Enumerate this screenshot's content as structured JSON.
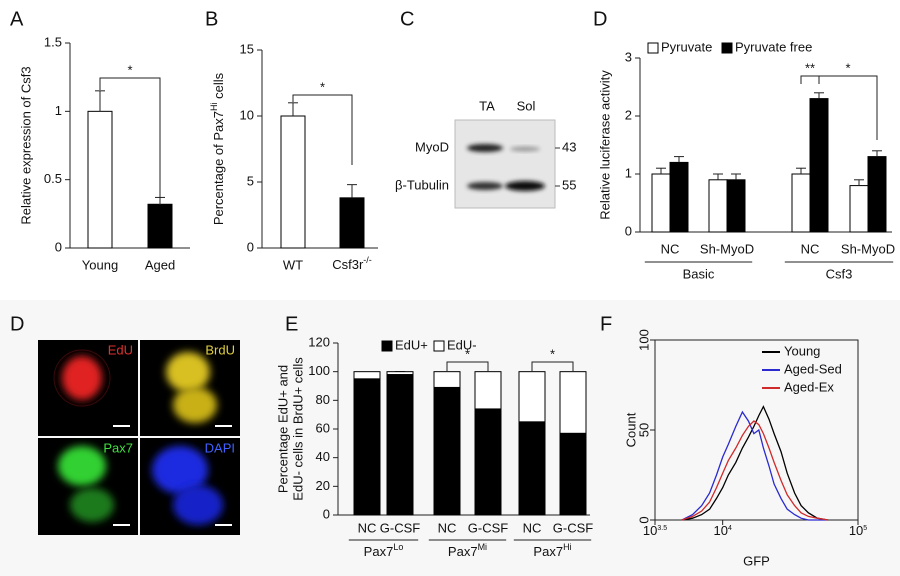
{
  "chart_data": [
    {
      "type": "bar",
      "panel": "A",
      "ylabel": "Relative expression of Csf3",
      "categories": [
        "Young",
        "Aged"
      ],
      "values": [
        1,
        0.32
      ],
      "errors": [
        0.15,
        0.05
      ],
      "colors": [
        "#ffffff",
        "#000000"
      ],
      "ylim": [
        0,
        1.5
      ],
      "yticks": [
        0,
        0.5,
        1,
        1.5
      ],
      "annotations": [
        "*"
      ]
    },
    {
      "type": "bar",
      "panel": "B",
      "ylabel": [
        "Percentage of Pax7",
        "Hi",
        " cells"
      ],
      "categories": [
        "WT",
        [
          "Csf3r",
          "-/-"
        ]
      ],
      "values": [
        10,
        3.8
      ],
      "errors": [
        1,
        1
      ],
      "colors": [
        "#ffffff",
        "#000000"
      ],
      "ylim": [
        0,
        15
      ],
      "yticks": [
        0,
        5,
        10,
        15
      ],
      "annotations": [
        "*"
      ]
    },
    {
      "type": "bar",
      "panel": "D",
      "ylabel": "Relative luciferase activity",
      "categories": [
        "NC",
        "Sh-MyoD",
        "NC",
        "Sh-MyoD"
      ],
      "groups": [
        "Basic",
        "Csf3"
      ],
      "series": [
        {
          "name": "Pyruvate",
          "color": "#ffffff",
          "values": [
            1,
            0.9,
            1,
            0.8
          ],
          "errors": [
            0.1,
            0.1,
            0.1,
            0.1
          ]
        },
        {
          "name": "Pyruvate free",
          "color": "#000000",
          "values": [
            1.2,
            0.9,
            2.3,
            1.3
          ],
          "errors": [
            0.1,
            0.1,
            0.1,
            0.1
          ]
        }
      ],
      "ylim": [
        0,
        3
      ],
      "yticks": [
        0,
        1,
        2,
        3
      ],
      "annotations": [
        "**",
        "*"
      ]
    },
    {
      "type": "bar",
      "stacked": true,
      "panel": "E",
      "ylabel": [
        "Percentage EdU+ and",
        "EdU- cells in BrdU+ cells"
      ],
      "categories": [
        "NC",
        "G-CSF",
        "NC",
        "G-CSF",
        "NC",
        "G-CSF"
      ],
      "groups": [
        [
          "Pax7",
          "Lo"
        ],
        [
          "Pax7",
          "Mi"
        ],
        [
          "Pax7",
          "Hi"
        ]
      ],
      "series": [
        {
          "name": "EdU+",
          "color": "#000000",
          "values": [
            95,
            98,
            89,
            74,
            65,
            57
          ],
          "errors": [
            3,
            2,
            4,
            3,
            3,
            2
          ]
        },
        {
          "name": "EdU-",
          "color": "#ffffff",
          "values": [
            5,
            2,
            11,
            26,
            35,
            43
          ]
        }
      ],
      "ylim": [
        0,
        120
      ],
      "yticks": [
        0,
        20,
        40,
        60,
        80,
        100,
        120
      ],
      "annotations": [
        "*",
        "*"
      ]
    },
    {
      "type": "line",
      "panel": "F",
      "ylabel": "Count",
      "xlabel": "GFP",
      "xlog": true,
      "x": [
        5000,
        6000,
        7000,
        8000,
        9000,
        10000,
        11000,
        12500,
        14000,
        15500,
        17000,
        18500,
        20000,
        22000,
        24000,
        27000,
        30000,
        34000,
        38000,
        43000,
        50000,
        60000
      ],
      "series": [
        {
          "name": "Young",
          "color": "#000000",
          "values": [
            0,
            1,
            3,
            6,
            12,
            18,
            25,
            32,
            40,
            46,
            52,
            58,
            63,
            56,
            48,
            38,
            26,
            15,
            8,
            4,
            1,
            0
          ]
        },
        {
          "name": "Aged-Sed",
          "color": "#2a2ad0",
          "values": [
            0,
            3,
            8,
            15,
            25,
            35,
            42,
            52,
            60,
            55,
            48,
            50,
            40,
            30,
            20,
            12,
            6,
            3,
            1,
            0,
            0,
            0
          ]
        },
        {
          "name": "Aged-Ex",
          "color": "#d02a2a",
          "values": [
            0,
            2,
            5,
            10,
            18,
            26,
            33,
            40,
            47,
            52,
            55,
            53,
            48,
            40,
            32,
            22,
            14,
            8,
            4,
            2,
            1,
            0
          ]
        }
      ],
      "xlim": [
        3162.3,
        100000
      ],
      "xticks": [
        {
          "value": 3162.3,
          "label": "10",
          "exponent": "3.5"
        },
        {
          "value": 10000,
          "label": "10",
          "exponent": "4"
        },
        {
          "value": 100000,
          "label": "10",
          "exponent": "5"
        }
      ],
      "ylim": [
        0,
        100
      ],
      "yticks": [
        0,
        50,
        100
      ]
    }
  ],
  "blot": {
    "panel": "C",
    "lanes": [
      "TA",
      "Sol"
    ],
    "rows": [
      "MyoD",
      "β-Tubulin"
    ],
    "sizes": [
      "43",
      "55"
    ]
  },
  "micrograph": {
    "panel": "D",
    "channels": [
      "EdU",
      "BrdU",
      "Pax7",
      "DAPI"
    ]
  }
}
